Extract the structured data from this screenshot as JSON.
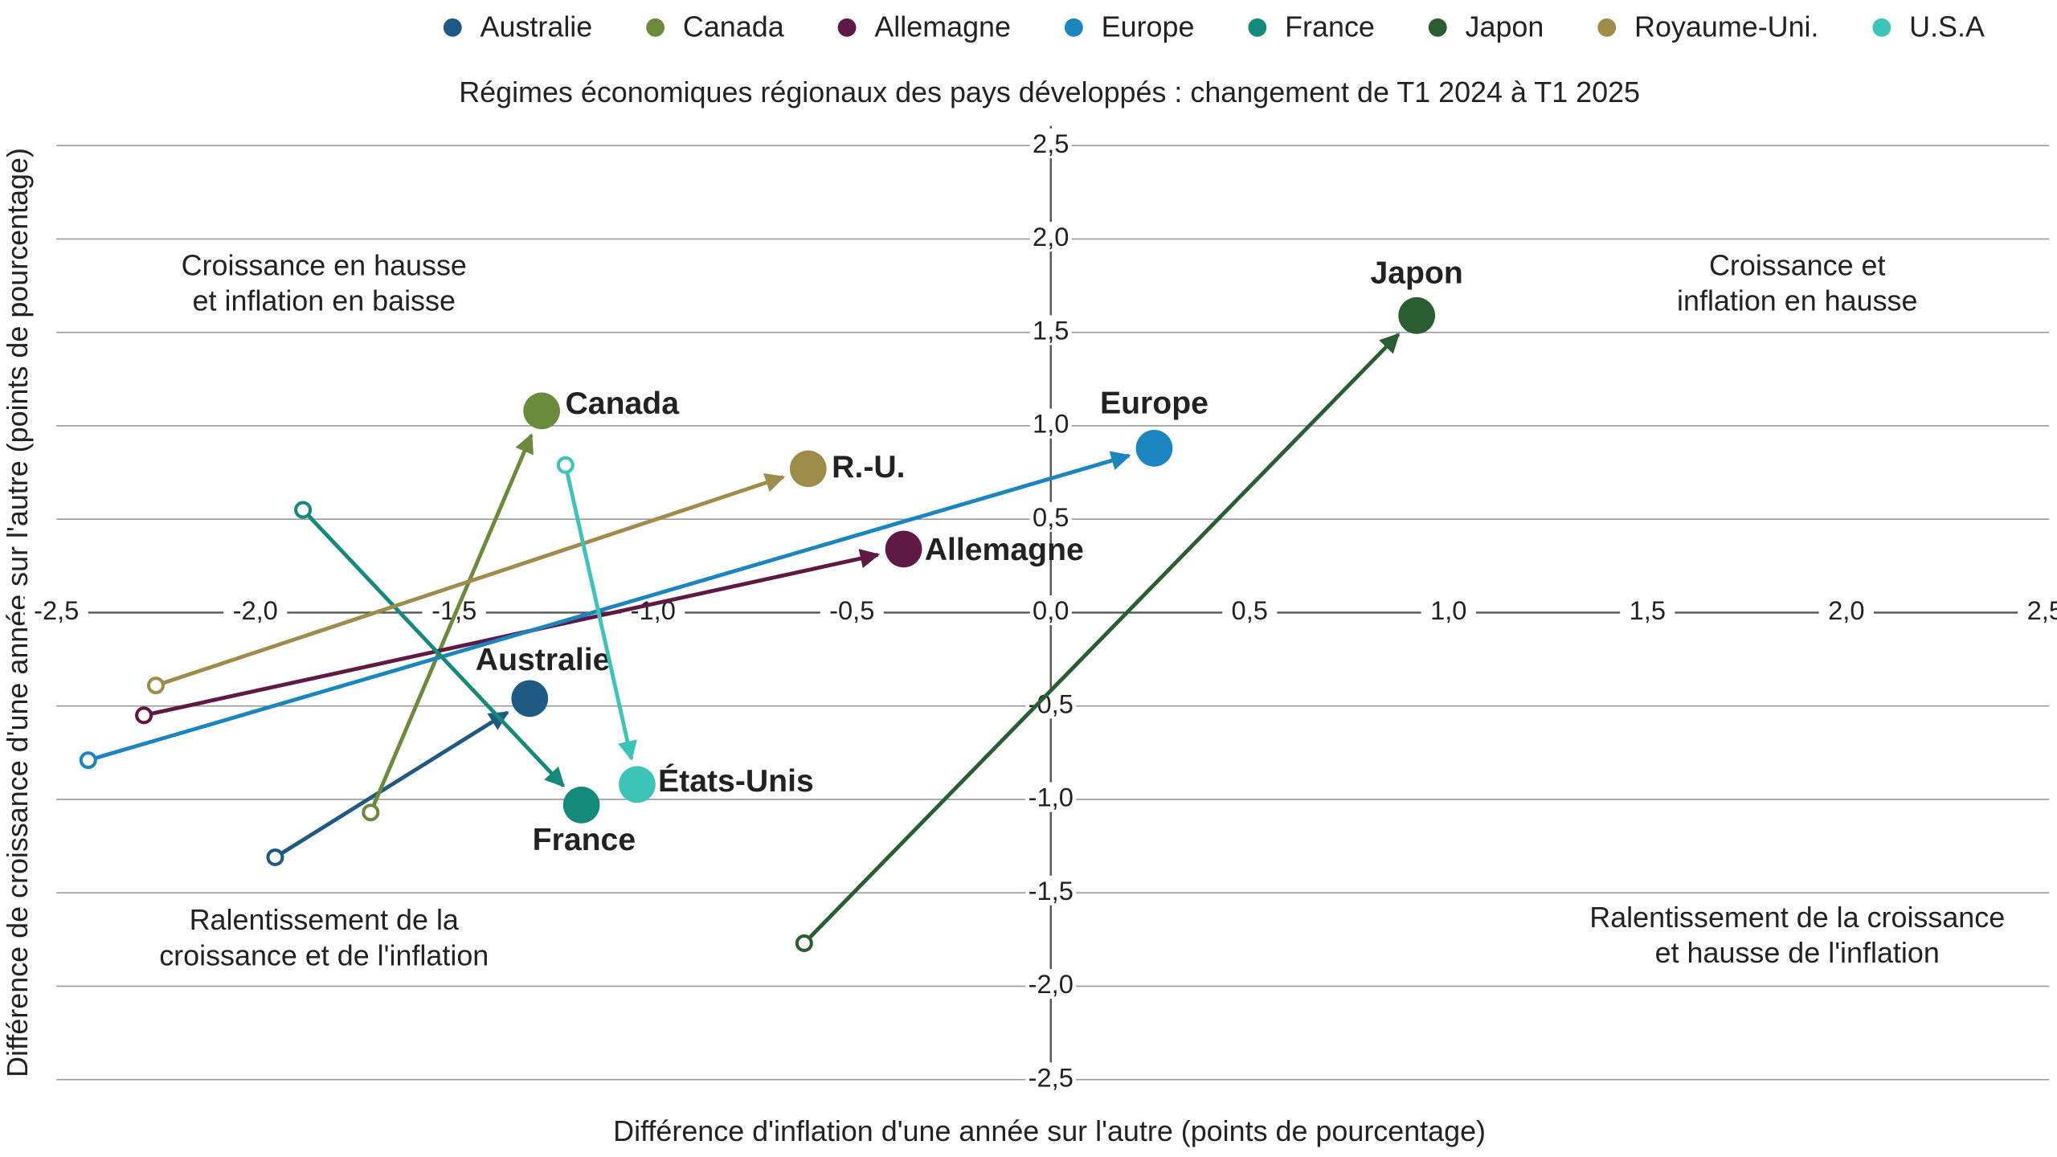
{
  "chart_data": {
    "type": "arrow-scatter",
    "title": "Régimes économiques régionaux des pays développés : changement de T1 2024 à T1 2025",
    "x_label": "Différence d'inflation d'une année sur l'autre (points de pourcentage)",
    "y_label": "Différence de croissance d'une année sur l'autre (points de pourcentage)",
    "xlim": [
      -2.5,
      2.5
    ],
    "ylim": [
      -2.5,
      2.5
    ],
    "xticks": [
      {
        "value": -2.5,
        "label": "-2,5"
      },
      {
        "value": -2.0,
        "label": "-2,0"
      },
      {
        "value": -1.5,
        "label": "-1,5"
      },
      {
        "value": -1.0,
        "label": "-1,0"
      },
      {
        "value": -0.5,
        "label": "-0,5"
      },
      {
        "value": 0,
        "label": "0,0"
      },
      {
        "value": 0.5,
        "label": "0,5"
      },
      {
        "value": 1.0,
        "label": "1,0"
      },
      {
        "value": 1.5,
        "label": "1,5"
      },
      {
        "value": 2.0,
        "label": "2,0"
      },
      {
        "value": 2.5,
        "label": "2,5"
      }
    ],
    "yticks": [
      {
        "value": 2.5,
        "label": "2,5"
      },
      {
        "value": 2.0,
        "label": "2,0"
      },
      {
        "value": 1.5,
        "label": "1,5"
      },
      {
        "value": 1.0,
        "label": "1,0"
      },
      {
        "value": 0.5,
        "label": "0,5"
      },
      {
        "value": 0,
        "label": "0,0"
      },
      {
        "value": -0.5,
        "label": "-0,5"
      },
      {
        "value": -1.0,
        "label": "-1,0"
      },
      {
        "value": -1.5,
        "label": "-1,5"
      },
      {
        "value": -2.0,
        "label": "-2,0"
      },
      {
        "value": -2.5,
        "label": "-2,5"
      }
    ],
    "grid": true,
    "annotations": [
      {
        "lines": [
          "Croissance en hausse",
          "et inflation en baisse"
        ]
      },
      {
        "lines": [
          "Croissance et",
          "inflation en hausse"
        ]
      },
      {
        "lines": [
          "Ralentissement de la",
          "croissance et de l'inflation"
        ]
      },
      {
        "lines": [
          "Ralentissement de la croissance",
          "et hausse de l'inflation"
        ]
      }
    ],
    "series": [
      {
        "name": "Australie",
        "label": "Australie",
        "color": "#1f5a85",
        "x": [
          -1.95,
          -1.31
        ],
        "values": [
          -1.31,
          -0.46
        ]
      },
      {
        "name": "Canada",
        "label": "Canada",
        "color": "#6b8a3c",
        "x": [
          -1.71,
          -1.28
        ],
        "values": [
          -1.07,
          1.08
        ]
      },
      {
        "name": "Allemagne",
        "label": "Allemagne",
        "color": "#5e1a44",
        "x": [
          -2.28,
          -0.37
        ],
        "values": [
          -0.55,
          0.34
        ]
      },
      {
        "name": "Europe",
        "label": "Europe",
        "color": "#1a85bf",
        "x": [
          -2.42,
          0.26
        ],
        "values": [
          -0.79,
          0.88
        ]
      },
      {
        "name": "France",
        "label": "France",
        "color": "#138a7a",
        "x": [
          -1.88,
          -1.18
        ],
        "values": [
          0.55,
          -1.03
        ]
      },
      {
        "name": "Japon",
        "label": "Japon",
        "color": "#2a5e31",
        "x": [
          -0.62,
          0.92
        ],
        "values": [
          -1.77,
          1.59
        ]
      },
      {
        "name": "Royaume-Uni.",
        "label": "R.-U.",
        "color": "#a08c4a",
        "x": [
          -2.25,
          -0.61
        ],
        "values": [
          -0.39,
          0.77
        ]
      },
      {
        "name": "U.S.A",
        "label": "États-Unis",
        "color": "#3cc4b8",
        "x": [
          -1.22,
          -1.04
        ],
        "values": [
          0.79,
          -0.92
        ]
      }
    ]
  }
}
